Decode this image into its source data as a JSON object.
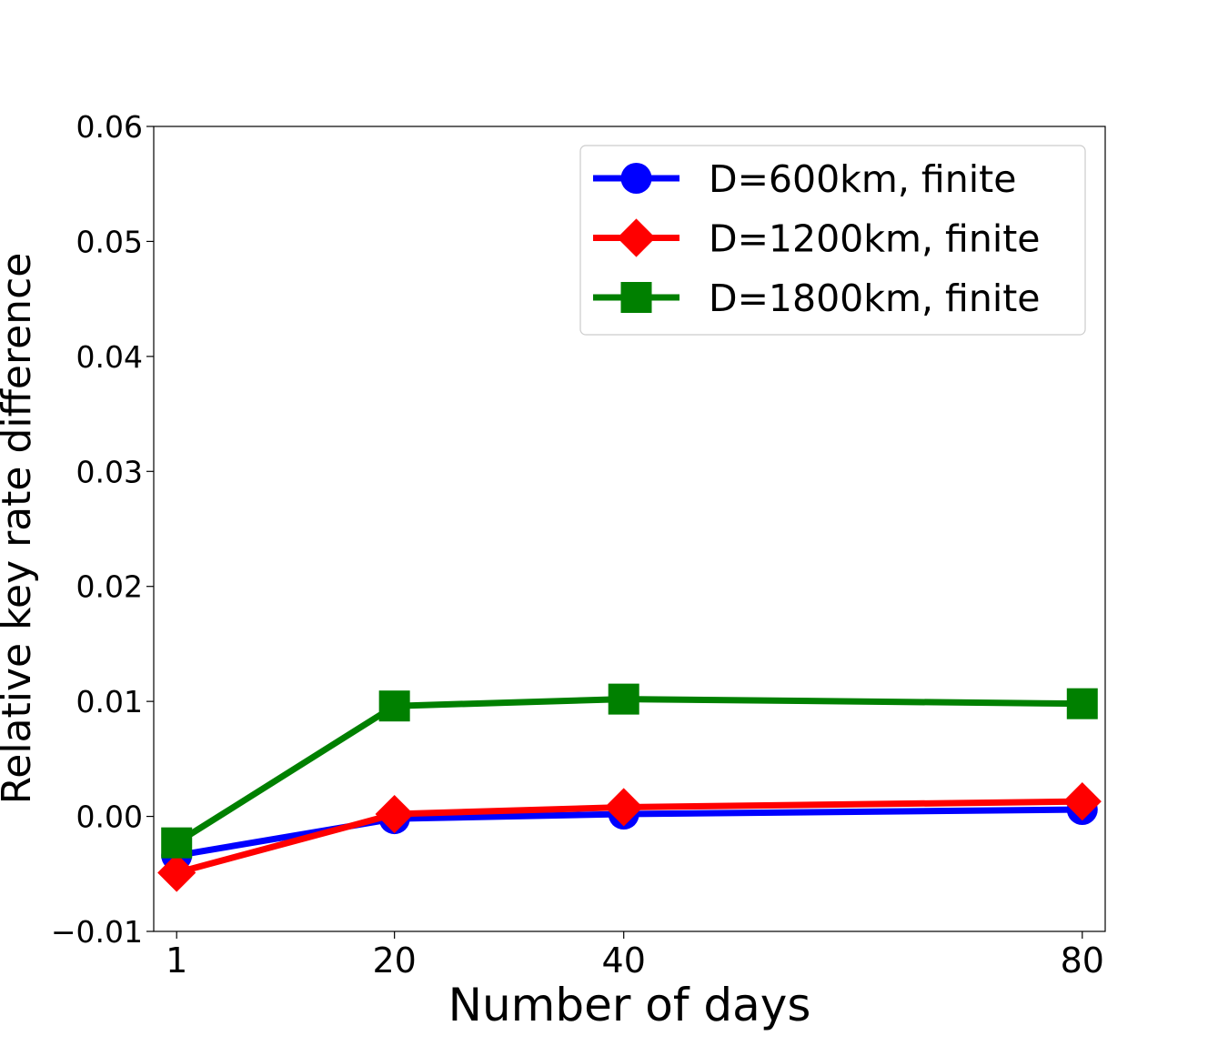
{
  "chart_data": {
    "type": "line",
    "xlabel": "Number of days",
    "ylabel": "Relative key rate difference",
    "x": [
      1,
      20,
      40,
      80
    ],
    "xticks": [
      "1",
      "20",
      "40",
      "80"
    ],
    "yticks": [
      "−0.01",
      "0.00",
      "0.01",
      "0.02",
      "0.03",
      "0.04",
      "0.05",
      "0.06"
    ],
    "ylim": [
      -0.01,
      0.06
    ],
    "grid": false,
    "legend_position": "top-right",
    "series": [
      {
        "name": "D=600km, finite",
        "color": "#0000ff",
        "marker": "circle",
        "values": [
          -0.0034,
          -0.0002,
          0.0002,
          0.0006
        ]
      },
      {
        "name": "D=1200km, finite",
        "color": "#ff0000",
        "marker": "diamond",
        "values": [
          -0.0049,
          0.0002,
          0.0008,
          0.0013
        ]
      },
      {
        "name": "D=1800km, finite",
        "color": "#008000",
        "marker": "square",
        "values": [
          -0.0023,
          0.0096,
          0.0102,
          0.0098
        ]
      }
    ]
  }
}
